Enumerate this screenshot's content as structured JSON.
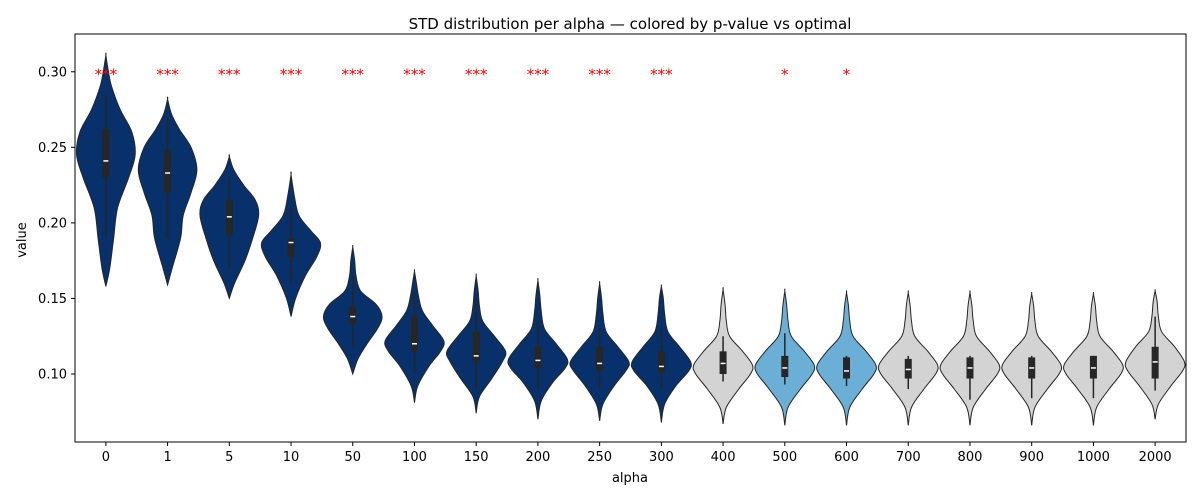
{
  "chart_data": {
    "type": "violin",
    "title": "STD distribution per alpha — colored by p-value vs optimal",
    "xlabel": "alpha",
    "ylabel": "value",
    "ylim": [
      0.055,
      0.325
    ],
    "yticks": [
      0.1,
      0.15,
      0.2,
      0.25,
      0.3
    ],
    "ytick_labels": [
      "0.10",
      "0.15",
      "0.20",
      "0.25",
      "0.30"
    ],
    "categories": [
      "0",
      "1",
      "5",
      "10",
      "50",
      "100",
      "150",
      "200",
      "250",
      "300",
      "400",
      "500",
      "600",
      "700",
      "800",
      "900",
      "1000",
      "2000"
    ],
    "colors": {
      "dark": "#08306b",
      "light": "#6baed6",
      "grey": "#d3d3d3",
      "sig_text": "#ff0000"
    },
    "violins": [
      {
        "alpha": "0",
        "color": "dark",
        "min": 0.158,
        "max": 0.311,
        "q1": 0.23,
        "median": 0.241,
        "q3": 0.262,
        "wlo": 0.19,
        "whi": 0.285,
        "sig": "***",
        "profile": [
          [
            0.158,
            0.0
          ],
          [
            0.17,
            0.06
          ],
          [
            0.19,
            0.12
          ],
          [
            0.21,
            0.18
          ],
          [
            0.23,
            0.35
          ],
          [
            0.245,
            0.45
          ],
          [
            0.26,
            0.4
          ],
          [
            0.275,
            0.22
          ],
          [
            0.29,
            0.09
          ],
          [
            0.3,
            0.04
          ],
          [
            0.311,
            0.0
          ]
        ]
      },
      {
        "alpha": "1",
        "color": "dark",
        "min": 0.159,
        "max": 0.282,
        "q1": 0.22,
        "median": 0.233,
        "q3": 0.248,
        "wlo": 0.19,
        "whi": 0.27,
        "sig": "***",
        "profile": [
          [
            0.159,
            0.0
          ],
          [
            0.17,
            0.07
          ],
          [
            0.19,
            0.2
          ],
          [
            0.205,
            0.24
          ],
          [
            0.22,
            0.36
          ],
          [
            0.235,
            0.45
          ],
          [
            0.25,
            0.36
          ],
          [
            0.262,
            0.18
          ],
          [
            0.272,
            0.06
          ],
          [
            0.282,
            0.0
          ]
        ]
      },
      {
        "alpha": "5",
        "color": "dark",
        "min": 0.15,
        "max": 0.244,
        "q1": 0.192,
        "median": 0.204,
        "q3": 0.215,
        "wlo": 0.17,
        "whi": 0.23,
        "sig": "***",
        "profile": [
          [
            0.15,
            0.0
          ],
          [
            0.16,
            0.08
          ],
          [
            0.175,
            0.24
          ],
          [
            0.19,
            0.36
          ],
          [
            0.205,
            0.45
          ],
          [
            0.215,
            0.4
          ],
          [
            0.225,
            0.22
          ],
          [
            0.235,
            0.07
          ],
          [
            0.244,
            0.0
          ]
        ]
      },
      {
        "alpha": "10",
        "color": "dark",
        "min": 0.138,
        "max": 0.232,
        "q1": 0.177,
        "median": 0.187,
        "q3": 0.19,
        "wlo": 0.16,
        "whi": 0.21,
        "sig": "***",
        "profile": [
          [
            0.138,
            0.0
          ],
          [
            0.15,
            0.07
          ],
          [
            0.165,
            0.22
          ],
          [
            0.178,
            0.4
          ],
          [
            0.187,
            0.45
          ],
          [
            0.195,
            0.3
          ],
          [
            0.205,
            0.12
          ],
          [
            0.218,
            0.05
          ],
          [
            0.232,
            0.0
          ]
        ]
      },
      {
        "alpha": "50",
        "color": "dark",
        "min": 0.1,
        "max": 0.184,
        "q1": 0.133,
        "median": 0.138,
        "q3": 0.145,
        "wlo": 0.118,
        "whi": 0.165,
        "sig": "***",
        "profile": [
          [
            0.1,
            0.0
          ],
          [
            0.11,
            0.08
          ],
          [
            0.12,
            0.22
          ],
          [
            0.13,
            0.38
          ],
          [
            0.138,
            0.45
          ],
          [
            0.146,
            0.36
          ],
          [
            0.155,
            0.12
          ],
          [
            0.165,
            0.05
          ],
          [
            0.175,
            0.03
          ],
          [
            0.184,
            0.0
          ]
        ]
      },
      {
        "alpha": "100",
        "color": "dark",
        "min": 0.081,
        "max": 0.168,
        "q1": 0.115,
        "median": 0.12,
        "q3": 0.138,
        "wlo": 0.1,
        "whi": 0.155,
        "sig": "***",
        "profile": [
          [
            0.081,
            0.0
          ],
          [
            0.092,
            0.05
          ],
          [
            0.105,
            0.22
          ],
          [
            0.115,
            0.4
          ],
          [
            0.122,
            0.45
          ],
          [
            0.132,
            0.28
          ],
          [
            0.142,
            0.12
          ],
          [
            0.152,
            0.06
          ],
          [
            0.16,
            0.03
          ],
          [
            0.168,
            0.0
          ]
        ]
      },
      {
        "alpha": "150",
        "color": "dark",
        "min": 0.074,
        "max": 0.165,
        "q1": 0.108,
        "median": 0.112,
        "q3": 0.128,
        "wlo": 0.09,
        "whi": 0.15,
        "sig": "***",
        "profile": [
          [
            0.074,
            0.0
          ],
          [
            0.085,
            0.05
          ],
          [
            0.097,
            0.24
          ],
          [
            0.108,
            0.4
          ],
          [
            0.115,
            0.45
          ],
          [
            0.125,
            0.28
          ],
          [
            0.135,
            0.1
          ],
          [
            0.145,
            0.05
          ],
          [
            0.155,
            0.03
          ],
          [
            0.165,
            0.0
          ]
        ]
      },
      {
        "alpha": "200",
        "color": "dark",
        "min": 0.07,
        "max": 0.162,
        "q1": 0.104,
        "median": 0.109,
        "q3": 0.118,
        "wlo": 0.09,
        "whi": 0.135,
        "sig": "***",
        "profile": [
          [
            0.07,
            0.0
          ],
          [
            0.082,
            0.05
          ],
          [
            0.094,
            0.22
          ],
          [
            0.104,
            0.42
          ],
          [
            0.11,
            0.45
          ],
          [
            0.12,
            0.28
          ],
          [
            0.13,
            0.1
          ],
          [
            0.142,
            0.05
          ],
          [
            0.152,
            0.03
          ],
          [
            0.162,
            0.0
          ]
        ]
      },
      {
        "alpha": "250",
        "color": "dark",
        "min": 0.069,
        "max": 0.16,
        "q1": 0.102,
        "median": 0.107,
        "q3": 0.118,
        "wlo": 0.09,
        "whi": 0.13,
        "sig": "***",
        "profile": [
          [
            0.069,
            0.0
          ],
          [
            0.08,
            0.05
          ],
          [
            0.092,
            0.22
          ],
          [
            0.102,
            0.4
          ],
          [
            0.108,
            0.45
          ],
          [
            0.118,
            0.28
          ],
          [
            0.128,
            0.1
          ],
          [
            0.14,
            0.05
          ],
          [
            0.15,
            0.03
          ],
          [
            0.16,
            0.0
          ]
        ]
      },
      {
        "alpha": "300",
        "color": "dark",
        "min": 0.068,
        "max": 0.158,
        "q1": 0.101,
        "median": 0.105,
        "q3": 0.115,
        "wlo": 0.09,
        "whi": 0.13,
        "sig": "***",
        "profile": [
          [
            0.068,
            0.0
          ],
          [
            0.08,
            0.05
          ],
          [
            0.092,
            0.22
          ],
          [
            0.102,
            0.42
          ],
          [
            0.108,
            0.45
          ],
          [
            0.118,
            0.28
          ],
          [
            0.128,
            0.1
          ],
          [
            0.14,
            0.05
          ],
          [
            0.15,
            0.03
          ],
          [
            0.158,
            0.0
          ]
        ]
      },
      {
        "alpha": "400",
        "color": "grey",
        "min": 0.067,
        "max": 0.156,
        "q1": 0.1,
        "median": 0.107,
        "q3": 0.115,
        "wlo": 0.095,
        "whi": 0.125,
        "sig": "",
        "profile": [
          [
            0.067,
            0.0
          ],
          [
            0.078,
            0.05
          ],
          [
            0.09,
            0.24
          ],
          [
            0.1,
            0.42
          ],
          [
            0.106,
            0.45
          ],
          [
            0.115,
            0.3
          ],
          [
            0.125,
            0.1
          ],
          [
            0.135,
            0.05
          ],
          [
            0.146,
            0.03
          ],
          [
            0.156,
            0.0
          ]
        ]
      },
      {
        "alpha": "500",
        "color": "light",
        "min": 0.066,
        "max": 0.155,
        "q1": 0.098,
        "median": 0.104,
        "q3": 0.112,
        "wlo": 0.093,
        "whi": 0.127,
        "sig": "*",
        "profile": [
          [
            0.066,
            0.0
          ],
          [
            0.078,
            0.05
          ],
          [
            0.09,
            0.24
          ],
          [
            0.1,
            0.42
          ],
          [
            0.106,
            0.45
          ],
          [
            0.115,
            0.3
          ],
          [
            0.125,
            0.1
          ],
          [
            0.135,
            0.05
          ],
          [
            0.145,
            0.03
          ],
          [
            0.155,
            0.0
          ]
        ]
      },
      {
        "alpha": "600",
        "color": "light",
        "min": 0.066,
        "max": 0.154,
        "q1": 0.097,
        "median": 0.102,
        "q3": 0.111,
        "wlo": 0.092,
        "whi": 0.112,
        "sig": "*",
        "profile": [
          [
            0.066,
            0.0
          ],
          [
            0.078,
            0.05
          ],
          [
            0.09,
            0.24
          ],
          [
            0.1,
            0.42
          ],
          [
            0.106,
            0.45
          ],
          [
            0.115,
            0.3
          ],
          [
            0.125,
            0.1
          ],
          [
            0.135,
            0.05
          ],
          [
            0.145,
            0.03
          ],
          [
            0.154,
            0.0
          ]
        ]
      },
      {
        "alpha": "700",
        "color": "grey",
        "min": 0.066,
        "max": 0.154,
        "q1": 0.097,
        "median": 0.103,
        "q3": 0.11,
        "wlo": 0.09,
        "whi": 0.112,
        "sig": "",
        "profile": [
          [
            0.066,
            0.0
          ],
          [
            0.078,
            0.05
          ],
          [
            0.09,
            0.24
          ],
          [
            0.1,
            0.42
          ],
          [
            0.106,
            0.45
          ],
          [
            0.115,
            0.3
          ],
          [
            0.125,
            0.1
          ],
          [
            0.135,
            0.05
          ],
          [
            0.145,
            0.03
          ],
          [
            0.154,
            0.0
          ]
        ]
      },
      {
        "alpha": "800",
        "color": "grey",
        "min": 0.066,
        "max": 0.154,
        "q1": 0.097,
        "median": 0.104,
        "q3": 0.111,
        "wlo": 0.083,
        "whi": 0.112,
        "sig": "",
        "profile": [
          [
            0.066,
            0.0
          ],
          [
            0.078,
            0.05
          ],
          [
            0.09,
            0.24
          ],
          [
            0.1,
            0.42
          ],
          [
            0.106,
            0.45
          ],
          [
            0.115,
            0.3
          ],
          [
            0.125,
            0.1
          ],
          [
            0.135,
            0.05
          ],
          [
            0.145,
            0.03
          ],
          [
            0.154,
            0.0
          ]
        ]
      },
      {
        "alpha": "900",
        "color": "grey",
        "min": 0.066,
        "max": 0.153,
        "q1": 0.097,
        "median": 0.104,
        "q3": 0.111,
        "wlo": 0.084,
        "whi": 0.112,
        "sig": "",
        "profile": [
          [
            0.066,
            0.0
          ],
          [
            0.078,
            0.05
          ],
          [
            0.09,
            0.24
          ],
          [
            0.1,
            0.42
          ],
          [
            0.106,
            0.45
          ],
          [
            0.115,
            0.3
          ],
          [
            0.125,
            0.1
          ],
          [
            0.135,
            0.05
          ],
          [
            0.145,
            0.03
          ],
          [
            0.153,
            0.0
          ]
        ]
      },
      {
        "alpha": "1000",
        "color": "grey",
        "min": 0.066,
        "max": 0.153,
        "q1": 0.097,
        "median": 0.104,
        "q3": 0.112,
        "wlo": 0.084,
        "whi": 0.112,
        "sig": "",
        "profile": [
          [
            0.066,
            0.0
          ],
          [
            0.078,
            0.05
          ],
          [
            0.09,
            0.24
          ],
          [
            0.1,
            0.42
          ],
          [
            0.106,
            0.45
          ],
          [
            0.115,
            0.3
          ],
          [
            0.125,
            0.1
          ],
          [
            0.135,
            0.05
          ],
          [
            0.145,
            0.03
          ],
          [
            0.153,
            0.0
          ]
        ]
      },
      {
        "alpha": "2000",
        "color": "grey",
        "min": 0.07,
        "max": 0.155,
        "q1": 0.097,
        "median": 0.108,
        "q3": 0.118,
        "wlo": 0.089,
        "whi": 0.138,
        "sig": "",
        "profile": [
          [
            0.07,
            0.0
          ],
          [
            0.08,
            0.05
          ],
          [
            0.092,
            0.24
          ],
          [
            0.102,
            0.42
          ],
          [
            0.108,
            0.45
          ],
          [
            0.118,
            0.3
          ],
          [
            0.128,
            0.1
          ],
          [
            0.138,
            0.05
          ],
          [
            0.148,
            0.03
          ],
          [
            0.155,
            0.0
          ]
        ]
      }
    ],
    "sig_y": 0.299,
    "grid": false,
    "legend": "none"
  }
}
